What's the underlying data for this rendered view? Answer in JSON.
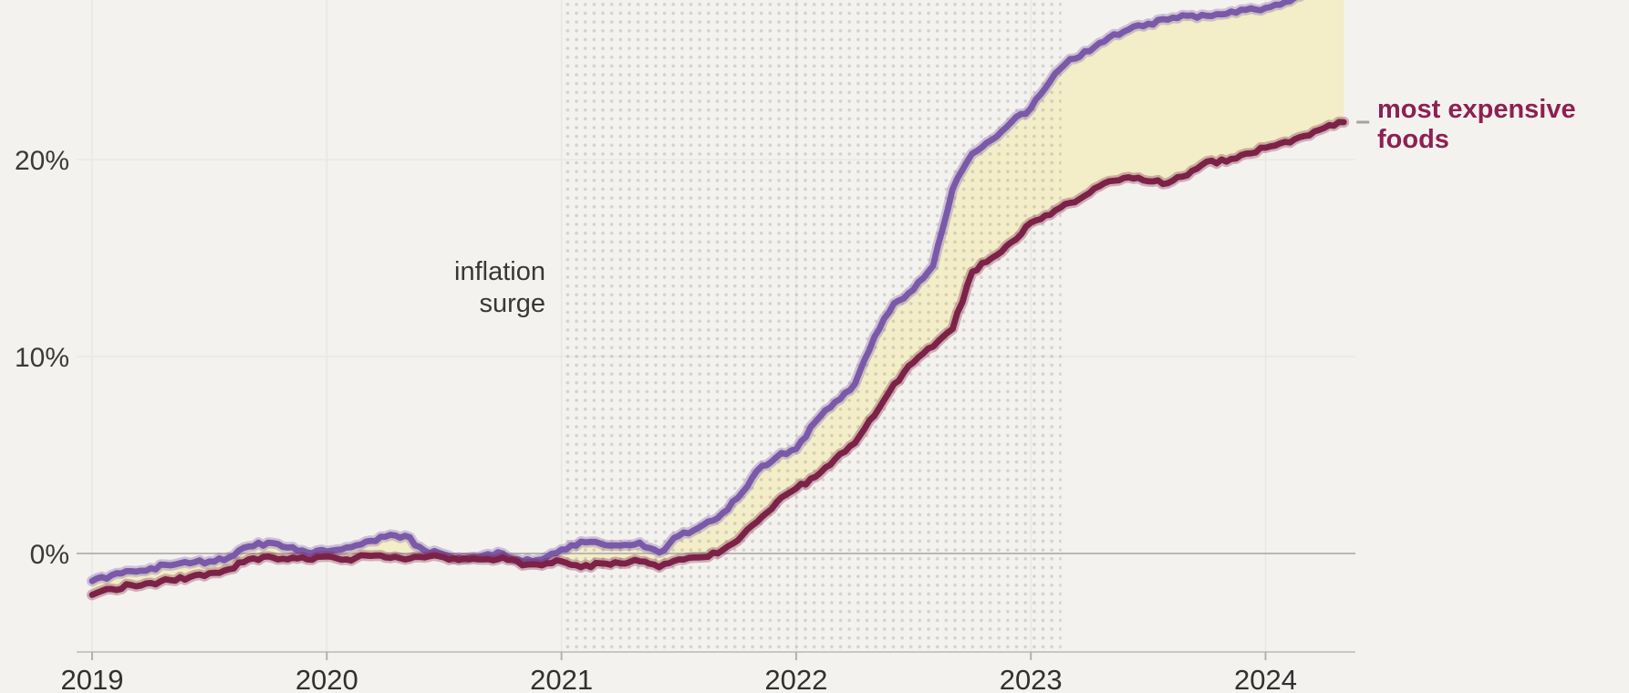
{
  "colors": {
    "background": "#f4f2ef",
    "band_fill": "#f3edc8",
    "grid_line": "#e9e7e4",
    "zero_line": "#bab7b4",
    "axis_line": "#c9c6c3",
    "tick_mark": "#b3b0ad",
    "dot_pattern": "#8d8882",
    "y_tick_text": "#3c3a38",
    "x_tick_text": "#323030",
    "annotation_text": "#3a3836",
    "series_purple": "#7a5aa8",
    "series_maroon": "#7c2248",
    "maroon_label": "#8e2051",
    "label_dash": "#a5a29f"
  },
  "chart_data": {
    "type": "line",
    "x_axis": {
      "tick_labels": [
        "2019",
        "2020",
        "2021",
        "2022",
        "2023",
        "2024"
      ],
      "tick_values": [
        2019,
        2020,
        2021,
        2022,
        2023,
        2024
      ],
      "start": 2019.0,
      "end": 2024.42
    },
    "y_axis": {
      "tick_labels": [
        "0%",
        "10%",
        "20%"
      ],
      "tick_values": [
        0,
        10,
        20
      ],
      "unit": "percent",
      "visible_top_value": 28.1,
      "grid": true
    },
    "shaded_region": {
      "style": "dotted",
      "label_lines": [
        "inflation",
        "surge"
      ],
      "x_start": 2021.0,
      "x_end": 2023.13
    },
    "band_fill_between_series": true,
    "series": [
      {
        "id": "purple",
        "label": null,
        "start": "2019-01",
        "interval": "monthly",
        "values": [
          -1.4,
          -1.1,
          -0.9,
          -0.75,
          -0.6,
          -0.5,
          -0.4,
          -0.2,
          0.35,
          0.55,
          0.3,
          0.05,
          0.1,
          0.3,
          0.6,
          0.85,
          0.9,
          0.15,
          -0.05,
          -0.3,
          -0.1,
          0.0,
          -0.4,
          -0.3,
          0.2,
          0.6,
          0.5,
          0.4,
          0.55,
          0.05,
          0.9,
          1.3,
          1.8,
          2.8,
          4.2,
          4.9,
          5.3,
          6.7,
          7.7,
          8.6,
          11.0,
          12.7,
          13.4,
          14.6,
          18.5,
          20.3,
          21.0,
          21.9,
          22.6,
          24.0,
          25.1,
          25.5,
          26.2,
          26.6,
          26.9,
          27.1,
          27.3,
          27.3,
          27.4,
          27.6,
          27.7,
          28.0,
          28.4,
          28.8,
          29.0
        ]
      },
      {
        "id": "most-expensive-foods",
        "label_lines": [
          "most expensive",
          "foods"
        ],
        "start": "2019-01",
        "interval": "monthly",
        "values": [
          -2.1,
          -1.8,
          -1.6,
          -1.5,
          -1.35,
          -1.2,
          -1.0,
          -0.8,
          -0.3,
          -0.15,
          -0.3,
          -0.3,
          -0.15,
          -0.3,
          -0.1,
          -0.2,
          -0.3,
          -0.2,
          -0.2,
          -0.25,
          -0.3,
          -0.2,
          -0.6,
          -0.6,
          -0.4,
          -0.7,
          -0.5,
          -0.5,
          -0.4,
          -0.7,
          -0.3,
          -0.2,
          0.0,
          0.65,
          1.6,
          2.6,
          3.3,
          3.9,
          4.8,
          5.6,
          7.0,
          8.6,
          9.7,
          10.5,
          11.4,
          14.3,
          15.0,
          15.8,
          16.8,
          17.2,
          17.8,
          18.3,
          18.9,
          19.1,
          18.9,
          18.8,
          19.2,
          19.9,
          19.9,
          20.3,
          20.6,
          20.9,
          21.2,
          21.6,
          21.9
        ]
      }
    ]
  }
}
